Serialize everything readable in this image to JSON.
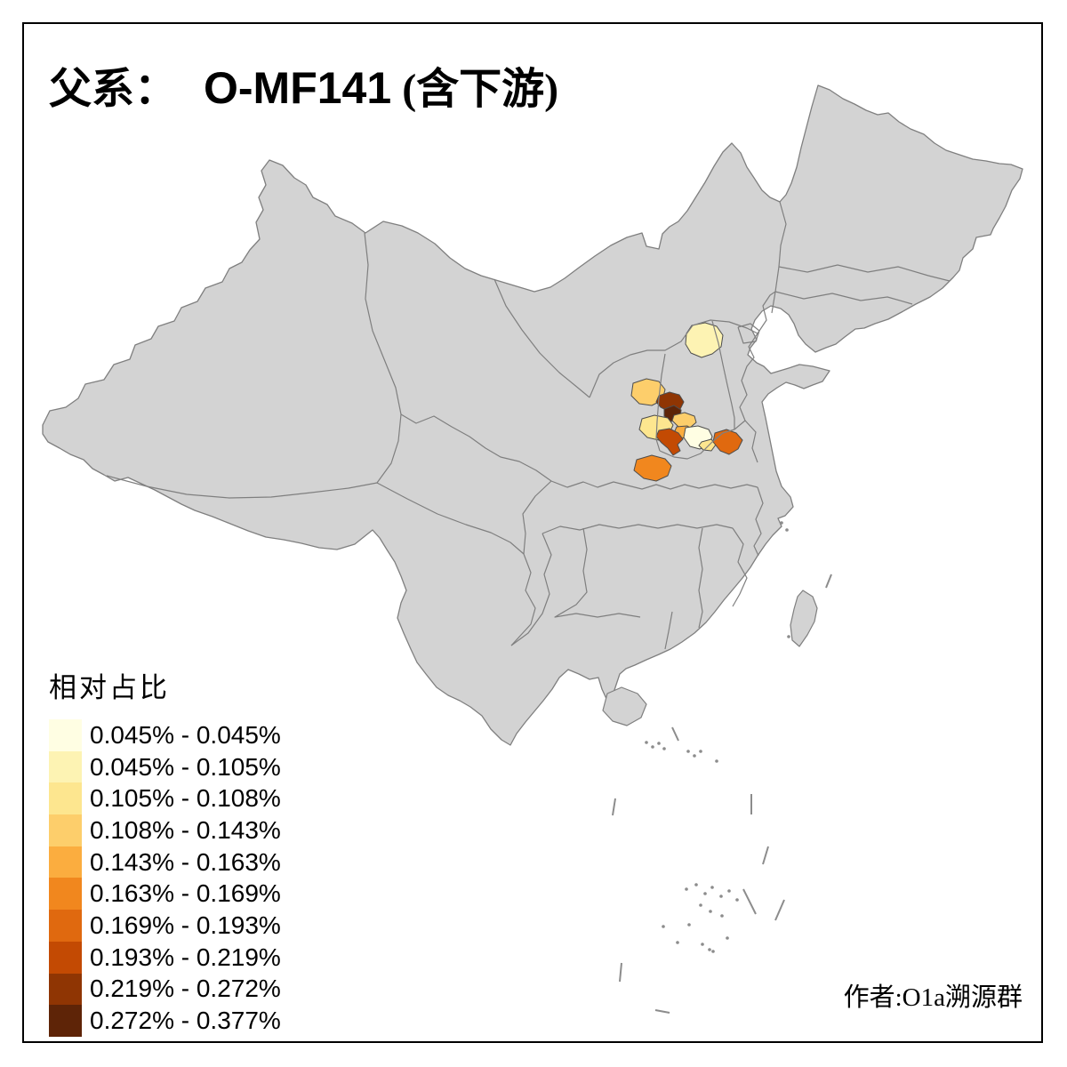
{
  "title": {
    "prefix": "父系：",
    "haplogroup": "O-MF141",
    "suffix": " (含下游)"
  },
  "legend": {
    "title": "相对占比",
    "classes": [
      {
        "range": "0.045% - 0.045%",
        "color": "#FFFEE3"
      },
      {
        "range": "0.045% - 0.105%",
        "color": "#FDF3B3"
      },
      {
        "range": "0.105% - 0.108%",
        "color": "#FDE68F"
      },
      {
        "range": "0.108% - 0.143%",
        "color": "#FDCE6B"
      },
      {
        "range": "0.143% - 0.163%",
        "color": "#FBAD3F"
      },
      {
        "range": "0.163% - 0.169%",
        "color": "#F1871E"
      },
      {
        "range": "0.169% - 0.193%",
        "color": "#E0690F"
      },
      {
        "range": "0.193% - 0.219%",
        "color": "#C34A03"
      },
      {
        "range": "0.219% - 0.272%",
        "color": "#8F3503"
      },
      {
        "range": "0.272% - 0.377%",
        "color": "#5E2407"
      }
    ]
  },
  "map": {
    "land_fill": "#D3D3D3",
    "border_color": "#7F7F7F",
    "patch_border_color": "#4D4D4D",
    "sea_color": "#FFFFFF",
    "regions": [
      {
        "legend_class": 2
      },
      {
        "legend_class": 4
      },
      {
        "legend_class": 9
      },
      {
        "legend_class": 10
      },
      {
        "legend_class": 3
      },
      {
        "legend_class": 4
      },
      {
        "legend_class": 5
      },
      {
        "legend_class": 8
      },
      {
        "legend_class": 1
      },
      {
        "legend_class": 3
      },
      {
        "legend_class": 7
      },
      {
        "legend_class": 6
      }
    ]
  },
  "credit": {
    "author": "作者:O1a溯源群"
  }
}
